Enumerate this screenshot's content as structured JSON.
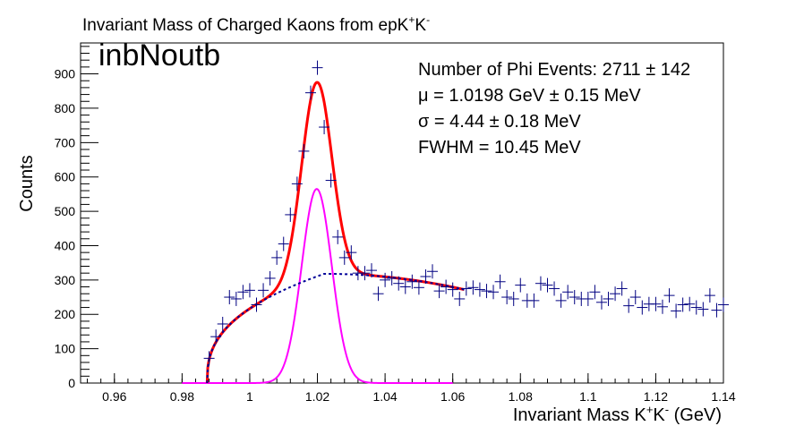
{
  "chart_data": {
    "type": "scatter",
    "title": "Invariant Mass of Charged Kaons from epK",
    "title_superscripts": [
      "+",
      "-"
    ],
    "xlabel": "Invariant Mass K",
    "xlabel_superscripts": [
      "+",
      "-"
    ],
    "xlabel_unit": " (GeV)",
    "ylabel": "Counts",
    "label_tag": "inbNoutb",
    "xlim": [
      0.95,
      1.14
    ],
    "ylim": [
      0,
      990
    ],
    "x_ticks": [
      0.96,
      0.98,
      1,
      1.02,
      1.04,
      1.06,
      1.08,
      1.1,
      1.12,
      1.14
    ],
    "x_tick_labels": [
      "0.96",
      "0.98",
      "1",
      "1.02",
      "1.04",
      "1.06",
      "1.08",
      "1.1",
      "1.12",
      "1.14"
    ],
    "y_ticks": [
      0,
      100,
      200,
      300,
      400,
      500,
      600,
      700,
      800,
      900
    ],
    "y_tick_labels": [
      "0",
      "100",
      "200",
      "300",
      "400",
      "500",
      "600",
      "700",
      "800",
      "900"
    ],
    "grid": false,
    "stats": [
      "Number of Phi Events: 2711 ± 142",
      "μ = 1.0198 GeV ± 0.15 MeV",
      "σ = 4.44 ± 0.18 MeV",
      "FWHM = 10.45 MeV"
    ],
    "colors": {
      "data": "#000080",
      "total_fit": "#ff0000",
      "signal": "#ff00ff",
      "background": "#000099"
    },
    "series": [
      {
        "kind": "data",
        "x": [
          0.988,
          0.99,
          0.992,
          0.994,
          0.996,
          0.998,
          1.0,
          1.002,
          1.004,
          1.006,
          1.008,
          1.01,
          1.012,
          1.014,
          1.016,
          1.018,
          1.02,
          1.022,
          1.024,
          1.026,
          1.028,
          1.03,
          1.032,
          1.034,
          1.036,
          1.038,
          1.04,
          1.042,
          1.044,
          1.046,
          1.048,
          1.05,
          1.052,
          1.054,
          1.056,
          1.058,
          1.06,
          1.062,
          1.064,
          1.066,
          1.068,
          1.07,
          1.072,
          1.074,
          1.076,
          1.078,
          1.08,
          1.082,
          1.084,
          1.086,
          1.088,
          1.09,
          1.092,
          1.094,
          1.096,
          1.098,
          1.1,
          1.102,
          1.104,
          1.106,
          1.108,
          1.11,
          1.112,
          1.114,
          1.116,
          1.118,
          1.12,
          1.122,
          1.124,
          1.126,
          1.128,
          1.13,
          1.132,
          1.134,
          1.136,
          1.138,
          1.14
        ],
        "y": [
          72,
          135,
          172,
          250,
          245,
          265,
          270,
          228,
          270,
          305,
          365,
          405,
          490,
          580,
          675,
          845,
          918,
          745,
          590,
          425,
          365,
          380,
          320,
          320,
          328,
          260,
          300,
          305,
          290,
          280,
          295,
          278,
          310,
          325,
          268,
          280,
          272,
          245,
          275,
          278,
          272,
          268,
          265,
          295,
          250,
          245,
          285,
          240,
          240,
          290,
          285,
          275,
          240,
          265,
          250,
          245,
          245,
          265,
          235,
          245,
          260,
          275,
          225,
          250,
          220,
          230,
          230,
          222,
          255,
          210,
          228,
          230,
          220,
          215,
          255,
          212,
          228
        ]
      }
    ],
    "fit_functions": {
      "total_fit": {
        "range": [
          0.9874,
          1.0634
        ],
        "signal_amplitude": 565,
        "mean": 1.0198,
        "sigma": 0.00444
      },
      "background": {
        "range": [
          0.9874,
          1.0634
        ],
        "threshold": 0.9874,
        "peak_value": 318,
        "peak_x": 1.022,
        "end_value": 272
      },
      "signal": {
        "range": [
          0.98,
          1.06
        ],
        "amplitude": 565,
        "mean": 1.0198,
        "sigma": 0.00444
      }
    }
  }
}
